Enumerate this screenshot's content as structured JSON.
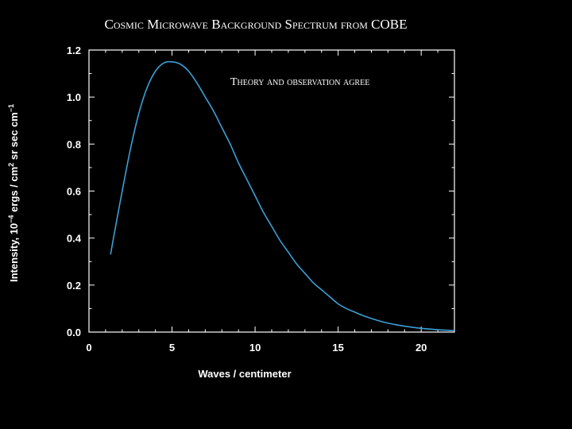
{
  "chart_data": {
    "type": "line",
    "title": "Cosmic Microwave Background Spectrum from COBE",
    "annotation": "Theory and observation agree",
    "xlabel": "Waves / centimeter",
    "ylabel_main": "Intensity, 10",
    "ylabel_sup1": "−4",
    "ylabel_mid": " ergs / cm",
    "ylabel_sup2": "2",
    "ylabel_mid2": " sr sec cm",
    "ylabel_sup3": "−1",
    "xlim": [
      0,
      22
    ],
    "ylim": [
      0,
      1.2
    ],
    "x_ticks": [
      0,
      5,
      10,
      15,
      20
    ],
    "x_tick_labels": [
      "0",
      "5",
      "10",
      "15",
      "20"
    ],
    "y_ticks": [
      0,
      0.2,
      0.4,
      0.6,
      0.8,
      1.0,
      1.2
    ],
    "y_tick_labels": [
      "0.0",
      "0.2",
      "0.4",
      "0.6",
      "0.8",
      "1.0",
      "1.2"
    ],
    "grid": false,
    "series": [
      {
        "color": "#3aa0d8",
        "x": [
          1.3,
          1.5,
          2,
          2.5,
          3,
          3.5,
          4,
          4.5,
          5,
          5.5,
          6,
          6.5,
          7,
          7.5,
          8,
          8.5,
          9,
          9.5,
          10,
          10.5,
          11,
          11.5,
          12,
          12.5,
          13,
          13.5,
          14,
          14.5,
          15,
          15.5,
          16,
          16.5,
          17,
          17.5,
          18,
          18.5,
          19,
          19.5,
          20,
          20.5,
          21,
          21.5,
          22
        ],
        "y": [
          0.33,
          0.41,
          0.6,
          0.78,
          0.93,
          1.04,
          1.11,
          1.145,
          1.15,
          1.14,
          1.11,
          1.06,
          1.0,
          0.94,
          0.87,
          0.8,
          0.72,
          0.65,
          0.58,
          0.51,
          0.45,
          0.39,
          0.34,
          0.29,
          0.25,
          0.21,
          0.18,
          0.15,
          0.12,
          0.1,
          0.085,
          0.07,
          0.058,
          0.047,
          0.038,
          0.031,
          0.025,
          0.02,
          0.016,
          0.013,
          0.01,
          0.008,
          0.006
        ]
      }
    ]
  }
}
